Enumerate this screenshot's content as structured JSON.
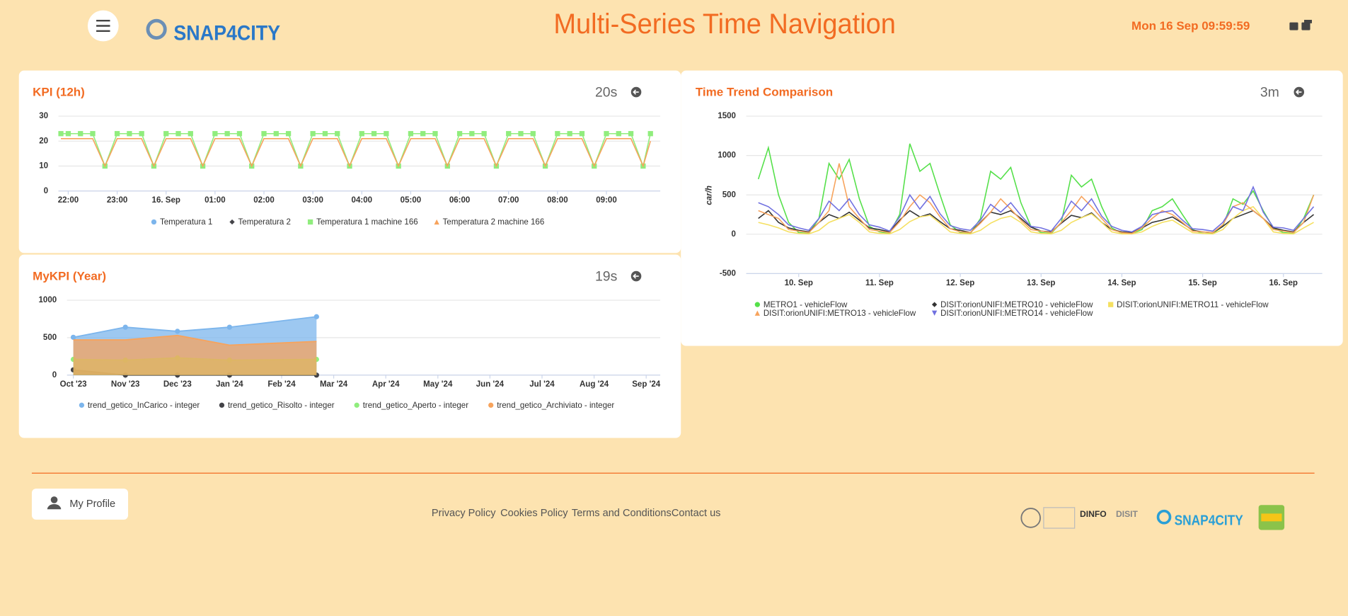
{
  "header": {
    "logo": "SNAP4CITY",
    "title": "Multi-Series Time Navigation",
    "datetime": "Mon 16 Sep 09:59:59"
  },
  "widgets": [
    {
      "title": "KPI (12h)",
      "refresh": "20s",
      "chart_data": {
        "type": "line",
        "xlim": [
          21.8,
          34.1
        ],
        "xticks": [
          {
            "value": 22,
            "label": "22:00"
          },
          {
            "value": 23,
            "label": "23:00"
          },
          {
            "value": 24,
            "label": "16. Sep"
          },
          {
            "value": 25,
            "label": "01:00"
          },
          {
            "value": 26,
            "label": "02:00"
          },
          {
            "value": 27,
            "label": "03:00"
          },
          {
            "value": 28,
            "label": "04:00"
          },
          {
            "value": 29,
            "label": "05:00"
          },
          {
            "value": 30,
            "label": "06:00"
          },
          {
            "value": 31,
            "label": "07:00"
          },
          {
            "value": 32,
            "label": "08:00"
          },
          {
            "value": 33,
            "label": "09:00"
          }
        ],
        "ylim": [
          0,
          30
        ],
        "yticks": [
          0,
          10,
          20,
          30
        ],
        "grid": true,
        "x": [
          21.85,
          22,
          22.25,
          22.5,
          22.75,
          23,
          23.25,
          23.5,
          23.75,
          24,
          24.25,
          24.5,
          24.75,
          25,
          25.25,
          25.5,
          25.75,
          26,
          26.25,
          26.5,
          26.75,
          27,
          27.25,
          27.5,
          27.75,
          28,
          28.25,
          28.5,
          28.75,
          29,
          29.25,
          29.5,
          29.75,
          30,
          30.25,
          30.5,
          30.75,
          31,
          31.25,
          31.5,
          31.75,
          32,
          32.25,
          32.5,
          32.75,
          33,
          33.25,
          33.5,
          33.75,
          33.9
        ],
        "series": [
          {
            "name": "Temperatura 1",
            "color": "#7cb5ec",
            "marker": "circle",
            "values": [
              null,
              null,
              null,
              null,
              null,
              null,
              null,
              null,
              null,
              null,
              null,
              null,
              null,
              null,
              null,
              null,
              null,
              null,
              null,
              null,
              null,
              null,
              null,
              null,
              null,
              null,
              null,
              null,
              null,
              null,
              null,
              null,
              null,
              null,
              null,
              null,
              null,
              null,
              null,
              null,
              null,
              null,
              null,
              null,
              null,
              null,
              null,
              null,
              null,
              null
            ]
          },
          {
            "name": "Temperatura 2",
            "color": "#434348",
            "marker": "diamond",
            "values": [
              null,
              null,
              null,
              null,
              null,
              null,
              null,
              null,
              null,
              null,
              null,
              null,
              null,
              null,
              null,
              null,
              null,
              null,
              null,
              null,
              null,
              null,
              null,
              null,
              null,
              null,
              null,
              null,
              null,
              null,
              null,
              null,
              null,
              null,
              null,
              null,
              null,
              null,
              null,
              null,
              null,
              null,
              null,
              null,
              null,
              null,
              null,
              null,
              null,
              null
            ]
          },
          {
            "name": "Temperatura 1 machine 166",
            "color": "#90ed7d",
            "marker": "square",
            "show_markers": true,
            "values": [
              23,
              23,
              23,
              23,
              10,
              23,
              23,
              23,
              10,
              23,
              23,
              23,
              10,
              23,
              23,
              23,
              10,
              23,
              23,
              23,
              10,
              23,
              23,
              23,
              10,
              23,
              23,
              23,
              10,
              23,
              23,
              23,
              10,
              23,
              23,
              23,
              10,
              23,
              23,
              23,
              10,
              23,
              23,
              23,
              10,
              23,
              23,
              23,
              10,
              23
            ]
          },
          {
            "name": "Temperatura 2 machine 166",
            "color": "#f7a35c",
            "marker": "triangle",
            "values": [
              21,
              21,
              21,
              21,
              10,
              21,
              21,
              21,
              10,
              21,
              21,
              21,
              10,
              21,
              21,
              21,
              10,
              21,
              21,
              21,
              10,
              21,
              21,
              21,
              10,
              21,
              21,
              21,
              10,
              21,
              21,
              21,
              10,
              21,
              21,
              21,
              10,
              21,
              21,
              21,
              10,
              21,
              21,
              21,
              10,
              21,
              21,
              21,
              10,
              20
            ]
          }
        ]
      }
    },
    {
      "title": "MyKPI (Year)",
      "refresh": "19s",
      "chart_data": {
        "type": "area",
        "xlim": [
          -0.12,
          11.27
        ],
        "xticks": [
          {
            "value": 0,
            "label": "Oct '23"
          },
          {
            "value": 1,
            "label": "Nov '23"
          },
          {
            "value": 2,
            "label": "Dec '23"
          },
          {
            "value": 3,
            "label": "Jan '24"
          },
          {
            "value": 4,
            "label": "Feb '24"
          },
          {
            "value": 5,
            "label": "Mar '24"
          },
          {
            "value": 6,
            "label": "Apr '24"
          },
          {
            "value": 7,
            "label": "May '24"
          },
          {
            "value": 8,
            "label": "Jun '24"
          },
          {
            "value": 9,
            "label": "Jul '24"
          },
          {
            "value": 10,
            "label": "Aug '24"
          },
          {
            "value": 11,
            "label": "Sep '24"
          }
        ],
        "ylim": [
          0,
          1000
        ],
        "yticks": [
          0,
          500,
          1000
        ],
        "grid": true,
        "x": [
          0,
          1,
          2,
          3,
          4.67
        ],
        "series": [
          {
            "name": "trend_getico_InCarico - integer",
            "color": "#7cb5ec",
            "marker": "circle",
            "show_markers": true,
            "values": [
              505,
              640,
              585,
              640,
              780
            ]
          },
          {
            "name": "trend_getico_Risolto - integer",
            "color": "#434348",
            "marker": "circle",
            "show_markers": true,
            "values": [
              70,
              0,
              0,
              0,
              0
            ]
          },
          {
            "name": "trend_getico_Aperto - integer",
            "color": "#90ed7d",
            "marker": "circle",
            "show_markers": true,
            "values": [
              210,
              200,
              230,
              200,
              210
            ]
          },
          {
            "name": "trend_getico_Archiviato - integer",
            "color": "#f7a35c",
            "marker": "circle",
            "values": [
              470,
              470,
              530,
              400,
              450
            ]
          }
        ]
      }
    },
    {
      "title": "Time Trend Comparison",
      "refresh": "3m",
      "chart_data": {
        "type": "line",
        "ylabel": "car/h",
        "xlim": [
          9.35,
          16.48
        ],
        "xticks": [
          {
            "value": 10,
            "label": "10. Sep"
          },
          {
            "value": 11,
            "label": "11. Sep"
          },
          {
            "value": 12,
            "label": "12. Sep"
          },
          {
            "value": 13,
            "label": "13. Sep"
          },
          {
            "value": 14,
            "label": "14. Sep"
          },
          {
            "value": 15,
            "label": "15. Sep"
          },
          {
            "value": 16,
            "label": "16. Sep"
          }
        ],
        "ylim": [
          -500,
          1500
        ],
        "yticks": [
          -500,
          0,
          500,
          1000,
          1500
        ],
        "grid": true,
        "x": [
          9.5,
          9.625,
          9.75,
          9.875,
          10,
          10.125,
          10.25,
          10.375,
          10.5,
          10.625,
          10.75,
          10.875,
          11,
          11.125,
          11.25,
          11.375,
          11.5,
          11.625,
          11.75,
          11.875,
          12,
          12.125,
          12.25,
          12.375,
          12.5,
          12.625,
          12.75,
          12.875,
          13,
          13.125,
          13.25,
          13.375,
          13.5,
          13.625,
          13.75,
          13.875,
          14,
          14.125,
          14.25,
          14.375,
          14.5,
          14.625,
          14.75,
          14.875,
          15,
          15.125,
          15.25,
          15.375,
          15.5,
          15.625,
          15.75,
          15.875,
          16,
          16.125,
          16.25,
          16.375
        ],
        "series": [
          {
            "name": "METRO1 - vehicleFlow",
            "color": "#55e04a",
            "marker": "circle",
            "values": [
              700,
              1100,
              500,
              150,
              20,
              10,
              200,
              900,
              700,
              950,
              450,
              100,
              30,
              10,
              250,
              1150,
              800,
              900,
              500,
              120,
              20,
              10,
              200,
              800,
              700,
              850,
              400,
              100,
              20,
              10,
              150,
              750,
              600,
              700,
              350,
              80,
              10,
              10,
              60,
              300,
              350,
              450,
              250,
              60,
              10,
              10,
              100,
              450,
              380,
              550,
              300,
              80,
              20,
              10,
              200,
              500
            ]
          },
          {
            "name": "DISIT:orionUNIFI:METRO10 - vehicleFlow",
            "color": "#333333",
            "marker": "diamond",
            "values": [
              200,
              300,
              150,
              80,
              50,
              30,
              150,
              250,
              200,
              280,
              180,
              80,
              60,
              30,
              180,
              300,
              220,
              260,
              160,
              70,
              50,
              20,
              150,
              280,
              250,
              300,
              200,
              90,
              40,
              30,
              140,
              240,
              210,
              270,
              150,
              60,
              30,
              20,
              80,
              150,
              180,
              220,
              140,
              50,
              30,
              20,
              100,
              200,
              250,
              300,
              200,
              80,
              50,
              30,
              150,
              250
            ]
          },
          {
            "name": "DISIT:orionUNIFI:METRO11 - vehicleFlow",
            "color": "#f5e060",
            "marker": "square",
            "values": [
              150,
              120,
              80,
              30,
              10,
              5,
              50,
              150,
              200,
              250,
              150,
              30,
              10,
              5,
              60,
              160,
              220,
              240,
              140,
              30,
              10,
              5,
              50,
              140,
              200,
              230,
              150,
              30,
              10,
              5,
              50,
              150,
              210,
              260,
              150,
              30,
              5,
              5,
              30,
              100,
              150,
              180,
              100,
              20,
              10,
              5,
              60,
              200,
              300,
              350,
              200,
              30,
              10,
              5,
              80,
              150
            ]
          },
          {
            "name": "DISIT:orionUNIFI:METRO13 - vehicleFlow",
            "color": "#f7a35c",
            "marker": "triangle",
            "values": [
              300,
              250,
              200,
              60,
              40,
              20,
              150,
              300,
              900,
              350,
              200,
              60,
              40,
              20,
              160,
              350,
              500,
              400,
              220,
              70,
              30,
              20,
              140,
              280,
              450,
              320,
              180,
              60,
              40,
              20,
              150,
              300,
              480,
              350,
              200,
              60,
              20,
              10,
              80,
              200,
              300,
              250,
              150,
              40,
              30,
              20,
              120,
              350,
              400,
              300,
              200,
              60,
              40,
              20,
              150,
              500
            ]
          },
          {
            "name": "DISIT:orionUNIFI:METRO14 - vehicleFlow",
            "color": "#7070e0",
            "marker": "triangle-down",
            "values": [
              400,
              350,
              250,
              120,
              80,
              50,
              200,
              420,
              300,
              450,
              250,
              120,
              90,
              40,
              220,
              500,
              320,
              480,
              260,
              110,
              70,
              50,
              180,
              380,
              280,
              400,
              240,
              100,
              80,
              40,
              200,
              420,
              300,
              450,
              230,
              100,
              50,
              30,
              100,
              250,
              280,
              300,
              180,
              70,
              60,
              40,
              150,
              350,
              300,
              600,
              280,
              90,
              80,
              50,
              200,
              350
            ]
          }
        ]
      }
    }
  ],
  "footer": {
    "profile": "My Profile",
    "links": [
      "Privacy Policy",
      "Cookies Policy",
      "Terms and Conditions",
      "Contact us"
    ],
    "logos": [
      "DINFO",
      "DISIT",
      "SNAP4CITY"
    ]
  }
}
